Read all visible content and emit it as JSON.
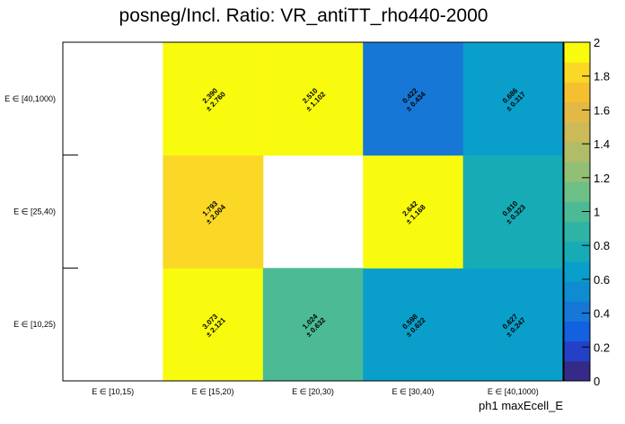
{
  "chart_data": {
    "type": "heatmap",
    "title": "posneg/Incl. Ratio: VR_antiTT_rho440-2000",
    "xlabel": "ph1 maxEcell_E",
    "ylabel": "",
    "x_categories": [
      "E ∈ [10,15)",
      "E ∈ [15,20)",
      "E ∈ [20,30)",
      "E ∈ [30,40)",
      "E ∈ [40,1000)"
    ],
    "y_categories": [
      "E ∈ [10,25)",
      "E ∈ [25,40)",
      "E ∈ [40,1000)"
    ],
    "values": [
      [
        null,
        3.073,
        1.024,
        0.598,
        0.627
      ],
      [
        null,
        1.793,
        null,
        2.642,
        0.81
      ],
      [
        null,
        2.39,
        2.51,
        0.422,
        0.686
      ]
    ],
    "errors": [
      [
        null,
        2.121,
        0.632,
        0.622,
        0.247
      ],
      [
        null,
        2.004,
        null,
        1.168,
        0.323
      ],
      [
        null,
        2.76,
        1.102,
        0.434,
        0.317
      ]
    ],
    "value_labels": [
      [
        null,
        "3.073",
        "1.024",
        "0.598",
        "0.627"
      ],
      [
        null,
        "1.793",
        null,
        "2.642",
        "0.810"
      ],
      [
        null,
        "2.390",
        "2.510",
        "0.422",
        "0.686"
      ]
    ],
    "error_labels": [
      [
        null,
        "± 2.121",
        "± 0.632",
        "± 0.622",
        "± 0.247"
      ],
      [
        null,
        "± 2.004",
        null,
        "± 1.168",
        "± 0.323"
      ],
      [
        null,
        "± 2.760",
        "± 1.102",
        "± 0.434",
        "± 0.317"
      ]
    ],
    "zlim": [
      0,
      2
    ],
    "z_ticks": [
      "0",
      "0.2",
      "0.4",
      "0.6",
      "0.8",
      "1",
      "1.2",
      "1.4",
      "1.6",
      "1.8",
      "2"
    ],
    "colorscale": [
      "#352a87",
      "#2340c6",
      "#1360e0",
      "#1677d6",
      "#0f8ccf",
      "#099fca",
      "#17abb6",
      "#2eb3a5",
      "#4cbb95",
      "#6dbf88",
      "#92bf76",
      "#b0bd66",
      "#ccb957",
      "#e2b846",
      "#f5c02f",
      "#fad825",
      "#f9fb0e"
    ],
    "grid": false,
    "legend": "colorbar-right"
  }
}
